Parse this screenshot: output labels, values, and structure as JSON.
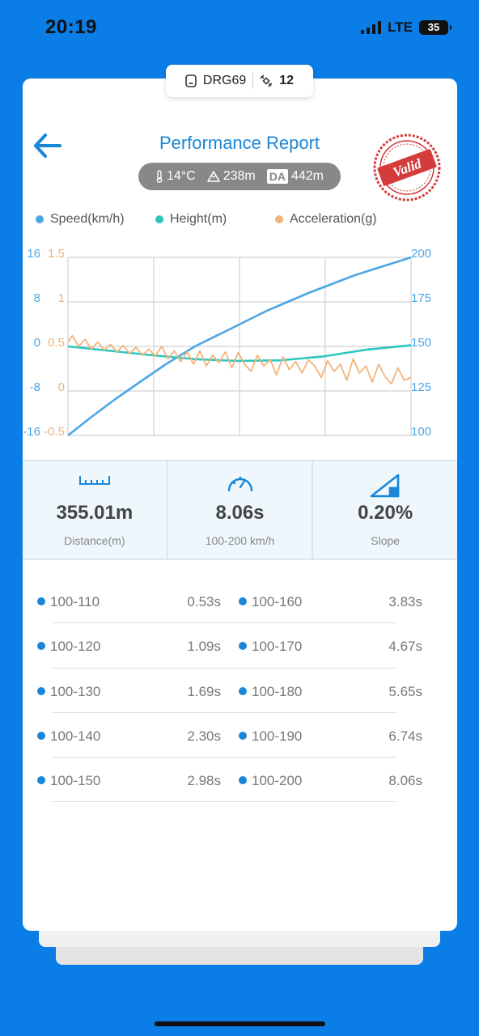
{
  "status_bar": {
    "time": "20:19",
    "network": "LTE",
    "battery": "35"
  },
  "device": {
    "name": "DRG69",
    "satellites": "12"
  },
  "header": {
    "title": "Performance Report",
    "stamp_text": "Valid"
  },
  "weather": {
    "temperature": "14°C",
    "altitude": "238m",
    "da_label": "DA",
    "density_altitude": "442m"
  },
  "legend": [
    {
      "label": "Speed(km/h)",
      "color": "#4da6e6"
    },
    {
      "label": "Height(m)",
      "color": "#2cc7c0"
    },
    {
      "label": "Acceleration(g)",
      "color": "#f2b37a"
    }
  ],
  "chart_data": {
    "type": "line",
    "x_range": [
      0,
      8.06
    ],
    "axes": {
      "height": {
        "ticks": [
          "16",
          "8",
          "0",
          "-8",
          "-16"
        ],
        "range": [
          -16,
          16
        ],
        "color": "#4da6e6"
      },
      "acceleration": {
        "ticks": [
          "1.5",
          "1",
          "0.5",
          "0",
          "-0.5"
        ],
        "range": [
          -0.5,
          1.5
        ],
        "color": "#f2b37a"
      },
      "speed": {
        "ticks": [
          "200",
          "175",
          "150",
          "125",
          "100"
        ],
        "range": [
          100,
          200
        ],
        "color": "#4da6e6"
      }
    },
    "series": [
      {
        "name": "Speed(km/h)",
        "axis": "speed",
        "color": "#4da6e6",
        "x": [
          0,
          0.53,
          1.09,
          1.69,
          2.3,
          2.98,
          3.83,
          4.67,
          5.65,
          6.74,
          8.06
        ],
        "y": [
          100,
          110,
          120,
          130,
          140,
          150,
          160,
          170,
          180,
          190,
          200
        ]
      },
      {
        "name": "Height(m)",
        "axis": "height",
        "color": "#2cc7c0",
        "x": [
          0,
          1,
          2,
          3,
          4,
          5,
          6,
          7,
          8.06
        ],
        "y": [
          0,
          -0.8,
          -1.6,
          -2.3,
          -2.6,
          -2.5,
          -1.8,
          -0.6,
          0.2
        ]
      },
      {
        "name": "Acceleration(g)",
        "axis": "acceleration",
        "color": "#f2b37a",
        "x": [
          0,
          0.1,
          0.25,
          0.4,
          0.55,
          0.7,
          0.85,
          1.0,
          1.15,
          1.3,
          1.45,
          1.6,
          1.75,
          1.9,
          2.05,
          2.2,
          2.35,
          2.5,
          2.65,
          2.8,
          2.95,
          3.1,
          3.25,
          3.4,
          3.55,
          3.7,
          3.85,
          4.0,
          4.15,
          4.3,
          4.45,
          4.6,
          4.75,
          4.9,
          5.05,
          5.2,
          5.35,
          5.5,
          5.65,
          5.8,
          5.95,
          6.1,
          6.25,
          6.4,
          6.55,
          6.7,
          6.85,
          7.0,
          7.15,
          7.3,
          7.45,
          7.6,
          7.75,
          7.9,
          8.06
        ],
        "y": [
          0.55,
          0.62,
          0.5,
          0.58,
          0.47,
          0.55,
          0.46,
          0.52,
          0.44,
          0.51,
          0.42,
          0.49,
          0.4,
          0.47,
          0.39,
          0.5,
          0.36,
          0.45,
          0.33,
          0.44,
          0.3,
          0.45,
          0.28,
          0.4,
          0.32,
          0.44,
          0.26,
          0.43,
          0.3,
          0.22,
          0.4,
          0.28,
          0.35,
          0.18,
          0.38,
          0.24,
          0.33,
          0.2,
          0.35,
          0.28,
          0.15,
          0.34,
          0.22,
          0.3,
          0.12,
          0.36,
          0.2,
          0.28,
          0.1,
          0.3,
          0.16,
          0.08,
          0.26,
          0.12,
          0.15
        ]
      }
    ]
  },
  "stats": [
    {
      "value": "355.01m",
      "label": "Distance(m)",
      "icon": "ruler-icon"
    },
    {
      "value": "8.06s",
      "label": "100-200 km/h",
      "icon": "speedometer-icon"
    },
    {
      "value": "0.20%",
      "label": "Slope",
      "icon": "slope-icon"
    }
  ],
  "splits": [
    {
      "left_range": "100-110",
      "left_time": "0.53s",
      "right_range": "100-160",
      "right_time": "3.83s"
    },
    {
      "left_range": "100-120",
      "left_time": "1.09s",
      "right_range": "100-170",
      "right_time": "4.67s"
    },
    {
      "left_range": "100-130",
      "left_time": "1.69s",
      "right_range": "100-180",
      "right_time": "5.65s"
    },
    {
      "left_range": "100-140",
      "left_time": "2.30s",
      "right_range": "100-190",
      "right_time": "6.74s"
    },
    {
      "left_range": "100-150",
      "left_time": "2.98s",
      "right_range": "100-200",
      "right_time": "8.06s"
    }
  ]
}
